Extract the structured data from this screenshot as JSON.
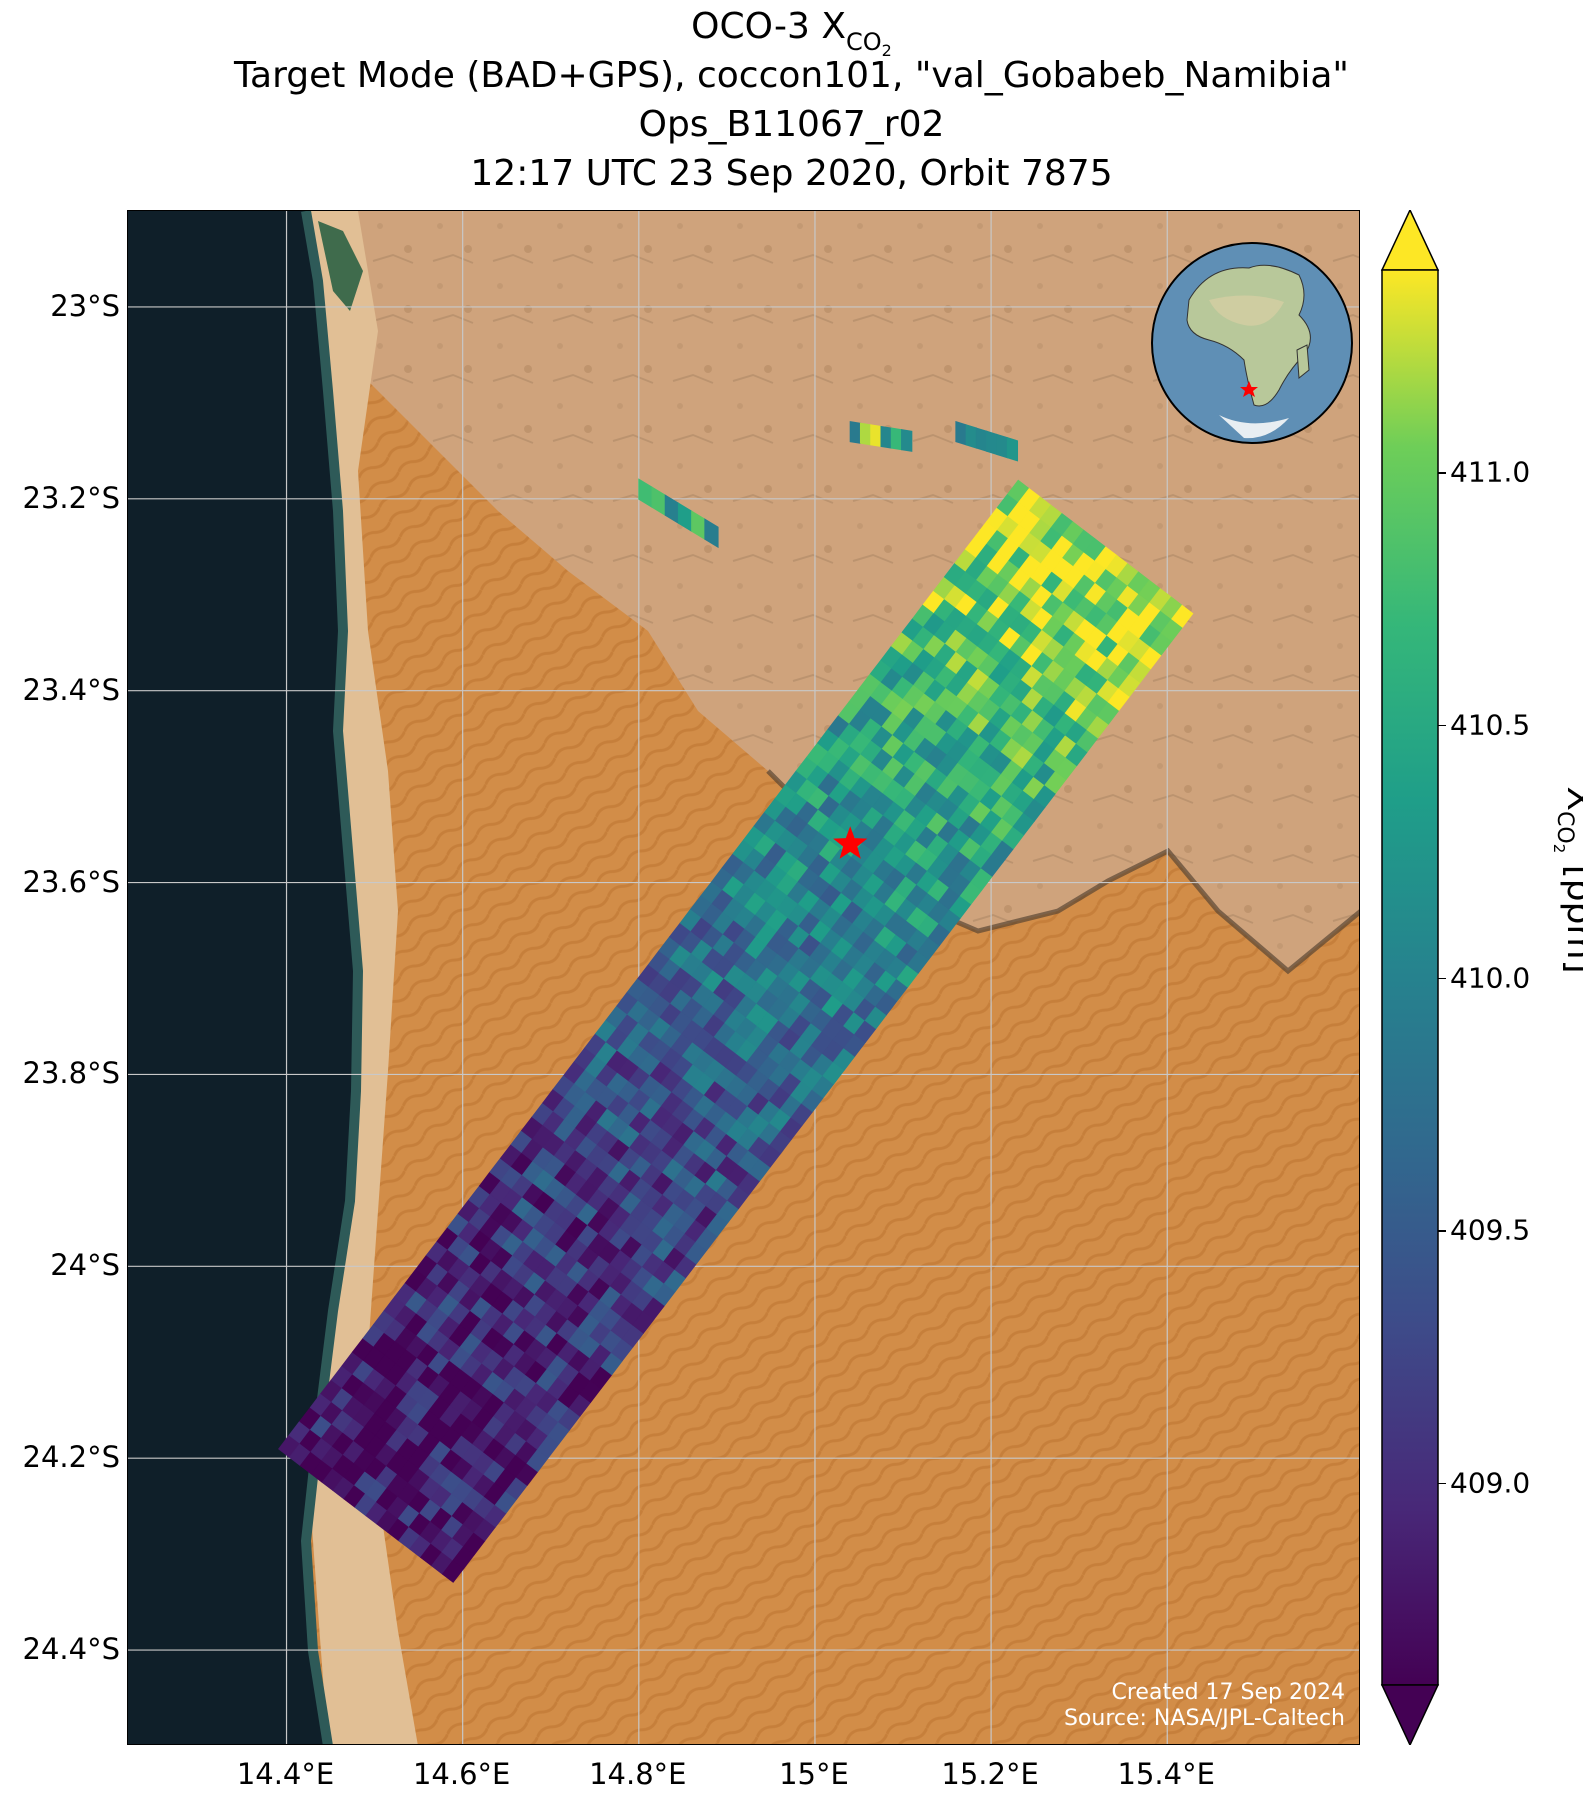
{
  "title": {
    "line1_prefix": "OCO-3 X",
    "line1_sub": "CO",
    "line1_sub2": "2",
    "line2": "Target Mode (BAD+GPS), coccon101, \"val_Gobabeb_Namibia\"",
    "line3": "Ops_B11067_r02",
    "line4": "12:17 UTC 23 Sep 2020, Orbit 7875"
  },
  "map": {
    "lon_range": [
      14.22,
      15.62
    ],
    "lat_range": [
      -24.5,
      -22.9
    ],
    "lat_ticks": [
      "23°S",
      "23.2°S",
      "23.4°S",
      "23.6°S",
      "23.8°S",
      "24°S",
      "24.2°S",
      "24.4°S"
    ],
    "lat_values": [
      -23.0,
      -23.2,
      -23.4,
      -23.6,
      -23.8,
      -24.0,
      -24.2,
      -24.4
    ],
    "lon_ticks": [
      "14.4°E",
      "14.6°E",
      "14.8°E",
      "15°E",
      "15.2°E",
      "15.4°E"
    ],
    "lon_values": [
      14.4,
      14.6,
      14.8,
      15.0,
      15.2,
      15.4
    ],
    "grid": true,
    "target_site": {
      "name": "val_Gobabeb_Namibia",
      "lon": 15.04,
      "lat": -23.56,
      "marker": "red-star"
    },
    "colors": {
      "ocean": "#0f1f29",
      "sand": "#d79a55",
      "rock": "#c9a37f",
      "dune_dark": "#c2782f",
      "target": "#ff0000"
    },
    "credit_line1": "Created 17 Sep 2024",
    "credit_line2": "Source: NASA/JPL-Caltech"
  },
  "colorbar": {
    "colormap": "viridis",
    "range": [
      408.6,
      411.4
    ],
    "extend": "both",
    "ticks": [
      "409.0",
      "409.5",
      "410.0",
      "410.5",
      "411.0"
    ],
    "tick_values": [
      409.0,
      409.5,
      410.0,
      410.5,
      411.0
    ],
    "label_prefix": "X",
    "label_sub": "CO",
    "label_sub2": "2",
    "label_suffix": " [ppm]"
  },
  "inset": {
    "type": "globe",
    "region": "Africa",
    "marker": "red-star"
  }
}
